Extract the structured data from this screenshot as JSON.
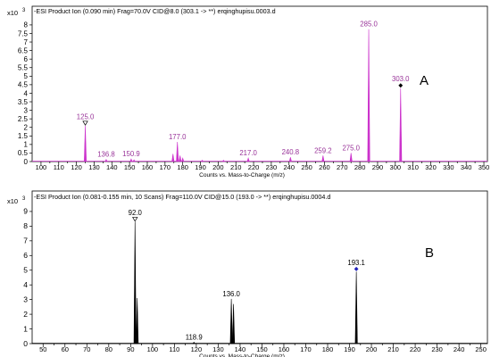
{
  "chart_data": [
    {
      "type": "line",
      "subtype": "mass-spectrum",
      "title": "-ESI Product Ion (0.090 min) Frag=70.0V CID@8.0 (303.1 -> **) erqinghupisu.0003.d",
      "y_exponent_label": "x10",
      "y_exponent": "3",
      "panel_label": "A",
      "xlabel": "Counts vs. Mass-to-Charge (m/z)",
      "xlim": [
        95,
        352
      ],
      "ylim": [
        0,
        8.1
      ],
      "x_ticks": [
        100,
        110,
        120,
        130,
        140,
        150,
        160,
        170,
        180,
        190,
        200,
        210,
        220,
        230,
        240,
        250,
        260,
        270,
        280,
        290,
        300,
        310,
        320,
        330,
        340,
        350
      ],
      "y_ticks": [
        0,
        0.5,
        1,
        1.5,
        2,
        2.5,
        3,
        3.5,
        4,
        4.5,
        5,
        5.5,
        6,
        6.5,
        7,
        7.5,
        8
      ],
      "y_tick_labels": [
        "0",
        "0.5",
        "1",
        "1.5",
        "2",
        "2.5",
        "3",
        "3.5",
        "4",
        "4.5",
        "5",
        "5.5",
        "6",
        "6.5",
        "7",
        "7.5",
        "8"
      ],
      "grid": false,
      "line_color": "#cc33cc",
      "label_color": "#993399",
      "peaks": [
        {
          "mz": 125.0,
          "intensity": 2.1,
          "label": "125.0",
          "marker": "triangle-down-open"
        },
        {
          "mz": 136.8,
          "intensity": 0.12,
          "label": "136.8"
        },
        {
          "mz": 150.9,
          "intensity": 0.15,
          "label": "150.9"
        },
        {
          "mz": 152.5,
          "intensity": 0.1
        },
        {
          "mz": 174.5,
          "intensity": 0.45
        },
        {
          "mz": 177.0,
          "intensity": 1.15,
          "label": "177.0"
        },
        {
          "mz": 178.5,
          "intensity": 0.35
        },
        {
          "mz": 180.0,
          "intensity": 0.2
        },
        {
          "mz": 191.0,
          "intensity": 0.08
        },
        {
          "mz": 203.0,
          "intensity": 0.08
        },
        {
          "mz": 217.0,
          "intensity": 0.2,
          "label": "217.0"
        },
        {
          "mz": 240.8,
          "intensity": 0.25,
          "label": "240.8"
        },
        {
          "mz": 259.2,
          "intensity": 0.35,
          "label": "259.2"
        },
        {
          "mz": 275.0,
          "intensity": 0.5,
          "label": "275.0"
        },
        {
          "mz": 285.0,
          "intensity": 7.75,
          "label": "285.0"
        },
        {
          "mz": 303.0,
          "intensity": 4.3,
          "label": "303.0",
          "marker": "diamond-filled"
        }
      ]
    },
    {
      "type": "line",
      "subtype": "mass-spectrum",
      "title": "-ESI Product Ion (0.081-0.155 min, 10 Scans) Frag=110.0V CID@15.0 (193.0 -> **) erqinghupisu.0004.d",
      "y_exponent_label": "x10",
      "y_exponent": "3",
      "panel_label": "B",
      "xlabel": "Counts vs. Mass-to-Charge (m/z)",
      "xlim": [
        45,
        253
      ],
      "ylim": [
        0,
        9.3
      ],
      "x_ticks": [
        50,
        60,
        70,
        80,
        90,
        100,
        110,
        120,
        130,
        140,
        150,
        160,
        170,
        180,
        190,
        200,
        210,
        220,
        230,
        240,
        250
      ],
      "y_ticks": [
        0,
        1,
        2,
        3,
        4,
        5,
        6,
        7,
        8,
        9
      ],
      "y_tick_labels": [
        "0",
        "1",
        "2",
        "3",
        "4",
        "5",
        "6",
        "7",
        "8",
        "9"
      ],
      "grid": false,
      "line_color": "#000000",
      "label_color": "#000000",
      "peaks": [
        {
          "mz": 92.0,
          "intensity": 8.3,
          "label": "92.0",
          "marker": "triangle-down-open"
        },
        {
          "mz": 93.0,
          "intensity": 3.1
        },
        {
          "mz": 118.9,
          "intensity": 0.1,
          "label": "118.9"
        },
        {
          "mz": 136.0,
          "intensity": 3.05,
          "label": "136.0"
        },
        {
          "mz": 137.0,
          "intensity": 2.7
        },
        {
          "mz": 193.1,
          "intensity": 4.9,
          "label": "193.1",
          "marker": "diamond-filled"
        }
      ]
    }
  ]
}
